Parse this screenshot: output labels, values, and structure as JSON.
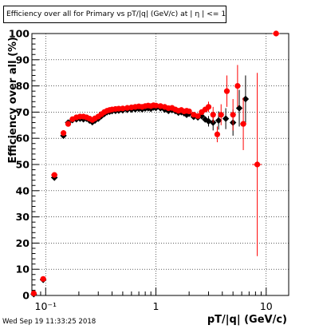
{
  "chart_data": {
    "type": "scatter",
    "title_parts": [
      "Efficiency over all for Primary vs pT/|q| (GeV/c) at |",
      "η",
      "| <= 1.0"
    ],
    "xlabel": "pT/|q| (GeV/c)",
    "ylabel": "Efficiency over all (%)",
    "x_scale": "log",
    "xlim": [
      0.075,
      16
    ],
    "ylim": [
      0,
      100
    ],
    "x_tick_labels": [
      "10⁻¹",
      "1",
      "10"
    ],
    "y_tick_labels": [
      "0",
      "10",
      "20",
      "30",
      "40",
      "50",
      "60",
      "70",
      "80",
      "90",
      "100"
    ],
    "grid": true,
    "series": [
      {
        "marker": "diamond",
        "color": "#000000",
        "points": [
          [
            0.078,
            0.5,
            0.003,
            0
          ],
          [
            0.095,
            6,
            0.006,
            0
          ],
          [
            0.12,
            45,
            0.008,
            0
          ],
          [
            0.145,
            61,
            0.006,
            0
          ],
          [
            0.16,
            66,
            0.005,
            0
          ],
          [
            0.175,
            67,
            0.005,
            0
          ],
          [
            0.19,
            67.3,
            0.005,
            0
          ],
          [
            0.205,
            67.5,
            0.005,
            0
          ],
          [
            0.22,
            67.3,
            0.005,
            0
          ],
          [
            0.235,
            67.5,
            0.005,
            0
          ],
          [
            0.25,
            66.8,
            0.005,
            0
          ],
          [
            0.265,
            66.2,
            0.005,
            0
          ],
          [
            0.28,
            66.8,
            0.005,
            0
          ],
          [
            0.3,
            67.5,
            0.006,
            0
          ],
          [
            0.32,
            68.5,
            0.006,
            0
          ],
          [
            0.34,
            69.3,
            0.006,
            0
          ],
          [
            0.36,
            70,
            0.006,
            0
          ],
          [
            0.38,
            70.2,
            0.006,
            0
          ],
          [
            0.4,
            70.4,
            0.006,
            0
          ],
          [
            0.43,
            70.5,
            0.008,
            0
          ],
          [
            0.46,
            70.6,
            0.008,
            0
          ],
          [
            0.5,
            70.7,
            0.01,
            0
          ],
          [
            0.55,
            70.9,
            0.012,
            0
          ],
          [
            0.6,
            71.0,
            0.012,
            0
          ],
          [
            0.65,
            71.1,
            0.012,
            0
          ],
          [
            0.7,
            71.3,
            0.012,
            0
          ],
          [
            0.75,
            71.1,
            0.012,
            0
          ],
          [
            0.8,
            71.4,
            0.015,
            0
          ],
          [
            0.85,
            71.5,
            0.015,
            0
          ],
          [
            0.9,
            71.3,
            0.015,
            0
          ],
          [
            0.95,
            71.8,
            0.015,
            0
          ],
          [
            1.0,
            71.6,
            0.02,
            0
          ],
          [
            1.1,
            71.5,
            0.02,
            0
          ],
          [
            1.2,
            71.0,
            0.025,
            0
          ],
          [
            1.3,
            70.5,
            0.025,
            0
          ],
          [
            1.4,
            70.8,
            0.03,
            0
          ],
          [
            1.5,
            70.4,
            0.03,
            0
          ],
          [
            1.6,
            69.8,
            0.03,
            0
          ],
          [
            1.7,
            70.0,
            0.03,
            0
          ],
          [
            1.8,
            69.6,
            0.035,
            0
          ],
          [
            1.9,
            69.0,
            0.035,
            0
          ],
          [
            2.0,
            69.4,
            0.04,
            0
          ],
          [
            2.2,
            68.2,
            0.05,
            1
          ],
          [
            2.4,
            68.0,
            0.05,
            1
          ],
          [
            2.6,
            68.5,
            0.05,
            1
          ],
          [
            2.8,
            67.2,
            0.05,
            1
          ],
          [
            3.0,
            66.5,
            0.1,
            2
          ],
          [
            3.3,
            66.0,
            0.1,
            3
          ],
          [
            3.7,
            66.8,
            0.2,
            3.5
          ],
          [
            4.3,
            67.5,
            0.2,
            4
          ],
          [
            5.0,
            66.0,
            0.25,
            5
          ],
          [
            5.7,
            71.5,
            0.3,
            7
          ],
          [
            6.5,
            75.0,
            0.4,
            9
          ]
        ]
      },
      {
        "marker": "circle",
        "color": "#ff0000",
        "points": [
          [
            0.078,
            0.8,
            0.003,
            0
          ],
          [
            0.095,
            6.3,
            0.006,
            0
          ],
          [
            0.12,
            46,
            0.008,
            0
          ],
          [
            0.145,
            62,
            0.006,
            0
          ],
          [
            0.16,
            65.5,
            0.005,
            0
          ],
          [
            0.175,
            67.3,
            0.005,
            0
          ],
          [
            0.19,
            68,
            0.005,
            0
          ],
          [
            0.205,
            68.3,
            0.005,
            0
          ],
          [
            0.22,
            68.3,
            0.005,
            0
          ],
          [
            0.235,
            68.0,
            0.005,
            0
          ],
          [
            0.25,
            67.5,
            0.005,
            0
          ],
          [
            0.265,
            67.0,
            0.005,
            0
          ],
          [
            0.28,
            67.6,
            0.005,
            0
          ],
          [
            0.3,
            68.3,
            0.006,
            0
          ],
          [
            0.32,
            69.2,
            0.006,
            0
          ],
          [
            0.34,
            70.0,
            0.006,
            0
          ],
          [
            0.36,
            70.5,
            0.006,
            0
          ],
          [
            0.38,
            70.8,
            0.006,
            0
          ],
          [
            0.4,
            71.0,
            0.006,
            0
          ],
          [
            0.43,
            71.2,
            0.008,
            0
          ],
          [
            0.46,
            71.3,
            0.008,
            0
          ],
          [
            0.5,
            71.4,
            0.01,
            0
          ],
          [
            0.55,
            71.6,
            0.012,
            0
          ],
          [
            0.6,
            71.8,
            0.012,
            0
          ],
          [
            0.65,
            72.0,
            0.012,
            0
          ],
          [
            0.7,
            72.2,
            0.012,
            0
          ],
          [
            0.75,
            72.0,
            0.012,
            0
          ],
          [
            0.8,
            72.3,
            0.015,
            0
          ],
          [
            0.85,
            72.5,
            0.015,
            0
          ],
          [
            0.9,
            72.3,
            0.015,
            0
          ],
          [
            0.95,
            72.6,
            0.015,
            0
          ],
          [
            1.0,
            72.5,
            0.02,
            0
          ],
          [
            1.1,
            72.3,
            0.02,
            0
          ],
          [
            1.2,
            72.0,
            0.025,
            0
          ],
          [
            1.3,
            71.5,
            0.025,
            0
          ],
          [
            1.4,
            71.6,
            0.03,
            0
          ],
          [
            1.5,
            71.0,
            0.03,
            0
          ],
          [
            1.6,
            70.5,
            0.03,
            0
          ],
          [
            1.7,
            70.8,
            0.03,
            0
          ],
          [
            1.8,
            70.3,
            0.035,
            0
          ],
          [
            1.9,
            70.5,
            0.035,
            0
          ],
          [
            2.0,
            70.3,
            0.04,
            0
          ],
          [
            2.2,
            69.0,
            0.05,
            1
          ],
          [
            2.4,
            68.5,
            0.05,
            1
          ],
          [
            2.6,
            70.0,
            0.05,
            1
          ],
          [
            2.8,
            71.0,
            0.05,
            1
          ],
          [
            3.0,
            72.0,
            0.1,
            2
          ],
          [
            3.3,
            69.0,
            0.1,
            3
          ],
          [
            3.6,
            61.5,
            0.15,
            3
          ],
          [
            3.9,
            69.0,
            0.2,
            4
          ],
          [
            4.4,
            78.0,
            0.25,
            6
          ],
          [
            5.0,
            69.0,
            0.25,
            6
          ],
          [
            5.5,
            80.0,
            0.3,
            8
          ],
          [
            6.2,
            65.5,
            0.4,
            10
          ],
          [
            8.3,
            50.0,
            0.8,
            35
          ],
          [
            12.3,
            100.0,
            1.0,
            0
          ]
        ]
      }
    ]
  },
  "footer": {
    "datestamp": "Wed Sep 19 11:33:25 2018"
  }
}
